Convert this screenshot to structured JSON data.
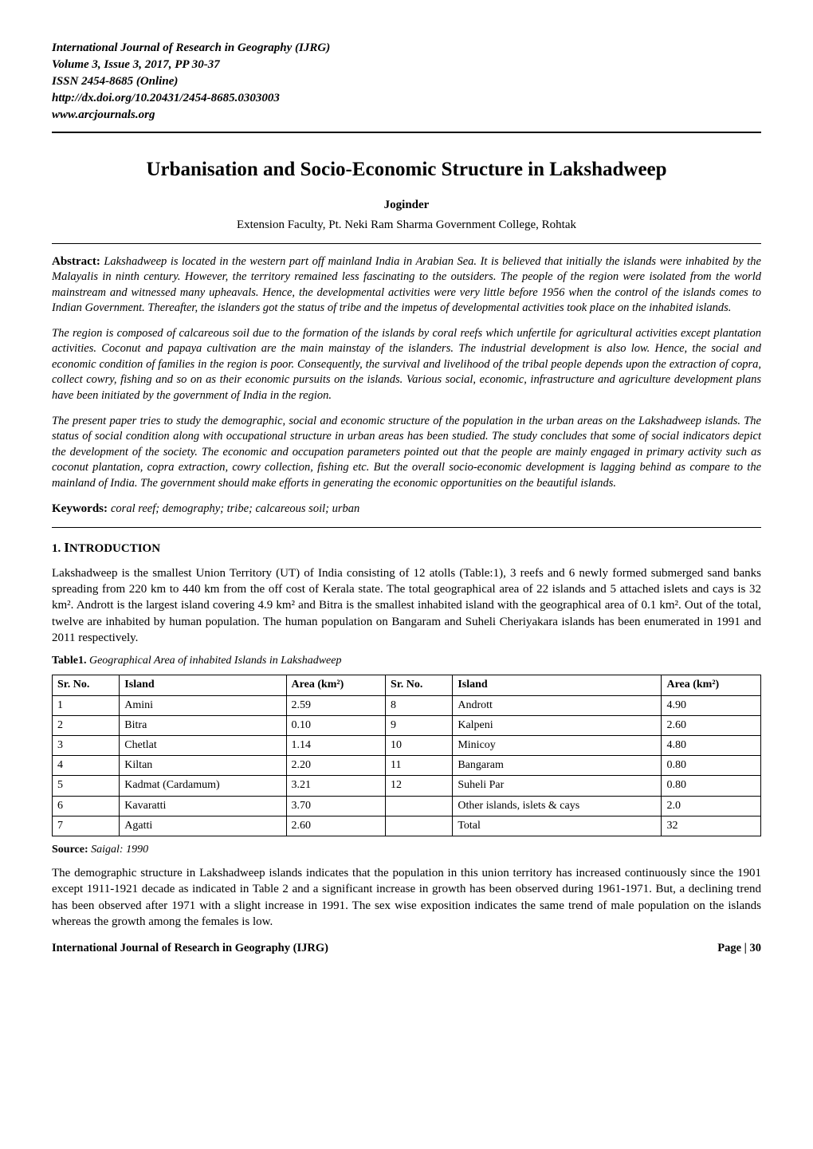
{
  "header": {
    "journal": "International Journal of Research in Geography (IJRG)",
    "volume": "Volume 3, Issue 3, 2017, PP 30-37",
    "issn": "ISSN 2454-8685 (Online)",
    "doi": "http://dx.doi.org/10.20431/2454-8685.0303003",
    "website": "www.arcjournals.org"
  },
  "title": "Urbanisation and Socio-Economic Structure in Lakshadweep",
  "author": "Joginder",
  "affiliation": "Extension Faculty, Pt. Neki Ram Sharma Government College, Rohtak",
  "abstract_label": "Abstract:",
  "abstract_paras": [
    "Lakshadweep is located in the western part off mainland India in Arabian Sea. It is believed that initially the islands were inhabited by the Malayalis in ninth century. However, the territory remained less fascinating to the outsiders. The people of the region were isolated from the world mainstream and witnessed many upheavals. Hence, the developmental activities were very little before 1956 when the control of the islands comes to Indian Government. Thereafter, the islanders got the status of tribe and the impetus of developmental activities took place on the inhabited islands.",
    "The region is composed of calcareous soil due to the formation of the islands by coral reefs which unfertile for agricultural activities except plantation activities. Coconut and papaya cultivation are the main mainstay of the islanders. The industrial development is also low. Hence, the social and economic condition of families in the region is poor. Consequently, the survival and livelihood of the tribal people depends upon the extraction of copra, collect cowry, fishing and so on as their economic pursuits on the islands. Various social, economic, infrastructure and agriculture development plans have been initiated by the government of India in the region.",
    "The present paper tries to study the demographic, social and economic structure of the population in the urban areas on the Lakshadweep islands. The status of social condition along with occupational structure in urban areas has been studied. The study concludes that some of social indicators depict the development of the society. The economic and occupation parameters pointed out that the people are mainly engaged in primary activity such as coconut plantation, copra extraction, cowry collection, fishing etc. But the overall socio-economic development is lagging behind as compare to the mainland of India. The government should make efforts in generating the economic opportunities on the beautiful islands."
  ],
  "keywords_label": "Keywords:",
  "keywords": "coral reef; demography; tribe; calcareous soil; urban",
  "section1": {
    "number": "1.",
    "title_first": "I",
    "title_rest": "NTRODUCTION",
    "para1": "Lakshadweep is the smallest Union Territory (UT) of India consisting of 12 atolls (Table:1), 3 reefs and 6 newly formed submerged sand banks spreading from 220 km to 440 km from the off cost of Kerala state. The total geographical area of 22 islands and 5 attached islets and cays is 32 km². Andrott is the largest island covering 4.9 km² and Bitra is the smallest inhabited island with the geographical area of 0.1 km². Out of the total, twelve are inhabited by human population. The human population on Bangaram and Suheli Cheriyakara islands has been enumerated in 1991 and 2011 respectively."
  },
  "table1": {
    "caption_label": "Table1.",
    "caption_text": "Geographical Area of inhabited Islands in Lakshadweep",
    "headers": [
      "Sr. No.",
      "Island",
      "Area (km²)",
      "Sr. No.",
      "Island",
      "Area (km²)"
    ],
    "rows": [
      [
        "1",
        "Amini",
        "2.59",
        "8",
        "Andrott",
        "4.90"
      ],
      [
        "2",
        "Bitra",
        "0.10",
        "9",
        "Kalpeni",
        "2.60"
      ],
      [
        "3",
        "Chetlat",
        "1.14",
        "10",
        "Minicoy",
        "4.80"
      ],
      [
        "4",
        "Kiltan",
        "2.20",
        "11",
        "Bangaram",
        "0.80"
      ],
      [
        "5",
        "Kadmat (Cardamum)",
        "3.21",
        "12",
        "Suheli Par",
        "0.80"
      ],
      [
        "6",
        "Kavaratti",
        "3.70",
        "",
        "Other islands, islets & cays",
        "2.0"
      ],
      [
        "7",
        "Agatti",
        "2.60",
        "",
        "Total",
        "32"
      ]
    ],
    "source_label": "Source:",
    "source_text": "Saigal: 1990"
  },
  "para_after_table": "The demographic structure in Lakshadweep islands indicates that the population in this union territory has increased continuously since the 1901 except 1911-1921 decade as indicated in Table 2 and a significant increase in growth has been observed during 1961-1971. But, a declining trend has been observed after 1971 with a slight increase in 1991. The sex wise exposition indicates the same trend of male population on the islands whereas the growth among the females is low.",
  "footer": {
    "left": "International Journal of Research in Geography (IJRG)",
    "right": "Page | 30"
  }
}
